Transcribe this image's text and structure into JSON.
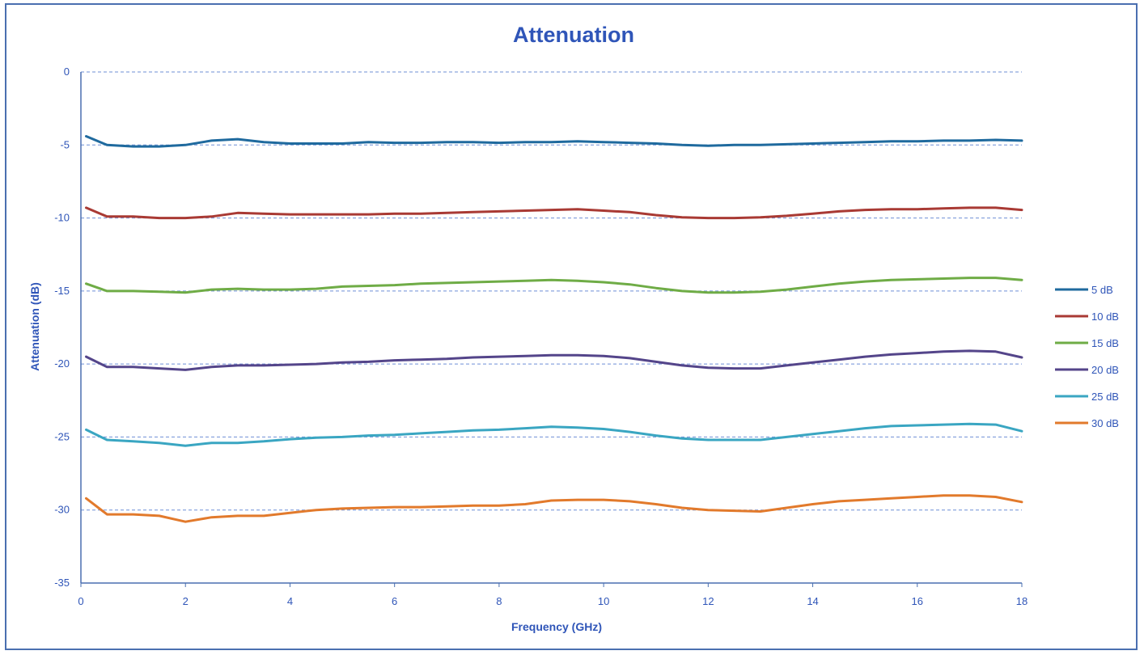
{
  "chart_data": {
    "type": "line",
    "title": "Attenuation",
    "xlabel": "Frequency (GHz)",
    "ylabel": "Attenuation (dB)",
    "xlim": [
      0,
      18
    ],
    "ylim": [
      -35,
      0
    ],
    "xticks": [
      0,
      2,
      4,
      6,
      8,
      10,
      12,
      14,
      16,
      18
    ],
    "yticks": [
      0,
      -5,
      -10,
      -15,
      -20,
      -25,
      -30,
      -35
    ],
    "grid": "horizontal dashed",
    "legend": "right",
    "x": [
      0.1,
      0.5,
      1.0,
      1.5,
      2.0,
      2.5,
      3.0,
      3.5,
      4.0,
      4.5,
      5.0,
      5.5,
      6.0,
      6.5,
      7.0,
      7.5,
      8.0,
      8.5,
      9.0,
      9.5,
      10.0,
      10.5,
      11.0,
      11.5,
      12.0,
      12.5,
      13.0,
      13.5,
      14.0,
      14.5,
      15.0,
      15.5,
      16.0,
      16.5,
      17.0,
      17.5,
      18.0
    ],
    "series": [
      {
        "name": "5 dB",
        "color": "#1f6a9e",
        "values": [
          -4.4,
          -5.0,
          -5.1,
          -5.1,
          -5.0,
          -4.7,
          -4.6,
          -4.8,
          -4.9,
          -4.9,
          -4.9,
          -4.8,
          -4.85,
          -4.85,
          -4.8,
          -4.8,
          -4.85,
          -4.8,
          -4.8,
          -4.75,
          -4.8,
          -4.85,
          -4.9,
          -5.0,
          -5.05,
          -5.0,
          -5.0,
          -4.95,
          -4.9,
          -4.85,
          -4.8,
          -4.75,
          -4.75,
          -4.7,
          -4.7,
          -4.65,
          -4.7
        ]
      },
      {
        "name": "10 dB",
        "color": "#a93a34",
        "values": [
          -9.3,
          -9.9,
          -9.9,
          -10.0,
          -10.0,
          -9.9,
          -9.65,
          -9.7,
          -9.75,
          -9.75,
          -9.75,
          -9.75,
          -9.7,
          -9.7,
          -9.65,
          -9.6,
          -9.55,
          -9.5,
          -9.45,
          -9.4,
          -9.5,
          -9.6,
          -9.8,
          -9.95,
          -10.0,
          -10.0,
          -9.95,
          -9.85,
          -9.7,
          -9.55,
          -9.45,
          -9.4,
          -9.4,
          -9.35,
          -9.3,
          -9.3,
          -9.45
        ]
      },
      {
        "name": "15 dB",
        "color": "#6fac46",
        "values": [
          -14.5,
          -15.0,
          -15.0,
          -15.05,
          -15.1,
          -14.9,
          -14.85,
          -14.9,
          -14.9,
          -14.85,
          -14.7,
          -14.65,
          -14.6,
          -14.5,
          -14.45,
          -14.4,
          -14.35,
          -14.3,
          -14.25,
          -14.3,
          -14.4,
          -14.55,
          -14.8,
          -15.0,
          -15.1,
          -15.1,
          -15.05,
          -14.9,
          -14.7,
          -14.5,
          -14.35,
          -14.25,
          -14.2,
          -14.15,
          -14.1,
          -14.1,
          -14.25
        ]
      },
      {
        "name": "20 dB",
        "color": "#54458a",
        "values": [
          -19.5,
          -20.2,
          -20.2,
          -20.3,
          -20.4,
          -20.2,
          -20.1,
          -20.1,
          -20.05,
          -20.0,
          -19.9,
          -19.85,
          -19.75,
          -19.7,
          -19.65,
          -19.55,
          -19.5,
          -19.45,
          -19.4,
          -19.4,
          -19.45,
          -19.6,
          -19.85,
          -20.1,
          -20.25,
          -20.3,
          -20.3,
          -20.1,
          -19.9,
          -19.7,
          -19.5,
          -19.35,
          -19.25,
          -19.15,
          -19.1,
          -19.15,
          -19.55
        ]
      },
      {
        "name": "25 dB",
        "color": "#3aa6c2",
        "values": [
          -24.5,
          -25.2,
          -25.3,
          -25.4,
          -25.6,
          -25.4,
          -25.4,
          -25.3,
          -25.15,
          -25.05,
          -25.0,
          -24.9,
          -24.85,
          -24.75,
          -24.65,
          -24.55,
          -24.5,
          -24.4,
          -24.3,
          -24.35,
          -24.45,
          -24.65,
          -24.9,
          -25.1,
          -25.2,
          -25.2,
          -25.2,
          -25.0,
          -24.8,
          -24.6,
          -24.4,
          -24.25,
          -24.2,
          -24.15,
          -24.1,
          -24.15,
          -24.6
        ]
      },
      {
        "name": "30 dB",
        "color": "#e27a2c",
        "values": [
          -29.2,
          -30.3,
          -30.3,
          -30.4,
          -30.8,
          -30.5,
          -30.4,
          -30.4,
          -30.2,
          -30.0,
          -29.9,
          -29.85,
          -29.8,
          -29.8,
          -29.75,
          -29.7,
          -29.7,
          -29.6,
          -29.35,
          -29.3,
          -29.3,
          -29.4,
          -29.6,
          -29.85,
          -30.0,
          -30.05,
          -30.1,
          -29.85,
          -29.6,
          -29.4,
          -29.3,
          -29.2,
          -29.1,
          -29.0,
          -29.0,
          -29.1,
          -29.45
        ]
      }
    ]
  }
}
